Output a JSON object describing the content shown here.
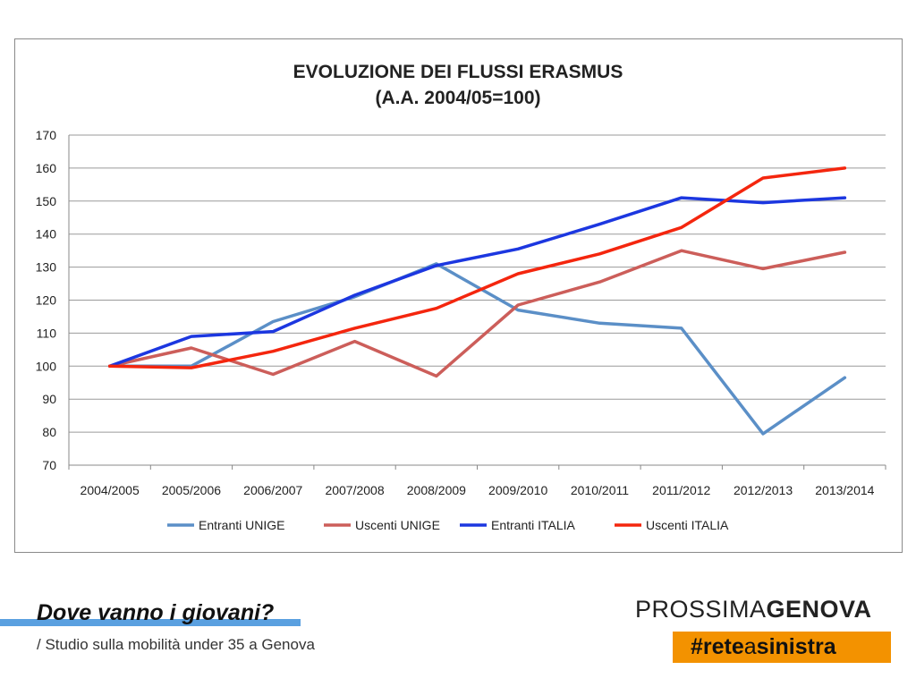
{
  "chart_data": {
    "type": "line",
    "title_lines": [
      "EVOLUZIONE DEI FLUSSI ERASMUS",
      "(A.A. 2004/05=100)"
    ],
    "categories": [
      "2004/2005",
      "2005/2006",
      "2006/2007",
      "2007/2008",
      "2008/2009",
      "2009/2010",
      "2010/2011",
      "2011/2012",
      "2012/2013",
      "2013/2014"
    ],
    "ylim": [
      70,
      170
    ],
    "yticks": [
      70,
      80,
      90,
      100,
      110,
      120,
      130,
      140,
      150,
      160,
      170
    ],
    "grid": true,
    "legend_position": "bottom",
    "series": [
      {
        "name": "Entranti UNIGE",
        "color": "#5b8fc7",
        "values": [
          100,
          100,
          113.5,
          121,
          131,
          117,
          113,
          111.5,
          79.5,
          96.5
        ]
      },
      {
        "name": "Uscenti UNIGE",
        "color": "#cc5e5a",
        "values": [
          100,
          105.5,
          97.5,
          107.5,
          97,
          118.5,
          125.5,
          135,
          129.5,
          134.5
        ]
      },
      {
        "name": "Entranti ITALIA",
        "color": "#1c37e0",
        "values": [
          100,
          109,
          110.5,
          121.5,
          130.5,
          135.5,
          143,
          151,
          149.5,
          151
        ]
      },
      {
        "name": "Uscenti ITALIA",
        "color": "#f4260e",
        "values": [
          100,
          99.5,
          104.5,
          111.5,
          117.5,
          128,
          134,
          142,
          157,
          160
        ]
      }
    ]
  },
  "footer": {
    "title": "Dove vanno i giovani?",
    "subtitle": "/ Studio sulla mobilità under 35 a Genova"
  },
  "brand": {
    "name_light": "PROSSIMA",
    "name_bold": "GENOVA",
    "hashtag_prefix": "#rete",
    "hashtag_mid": "a",
    "hashtag_suffix": "sinistra",
    "accent_color": "#f39200"
  }
}
